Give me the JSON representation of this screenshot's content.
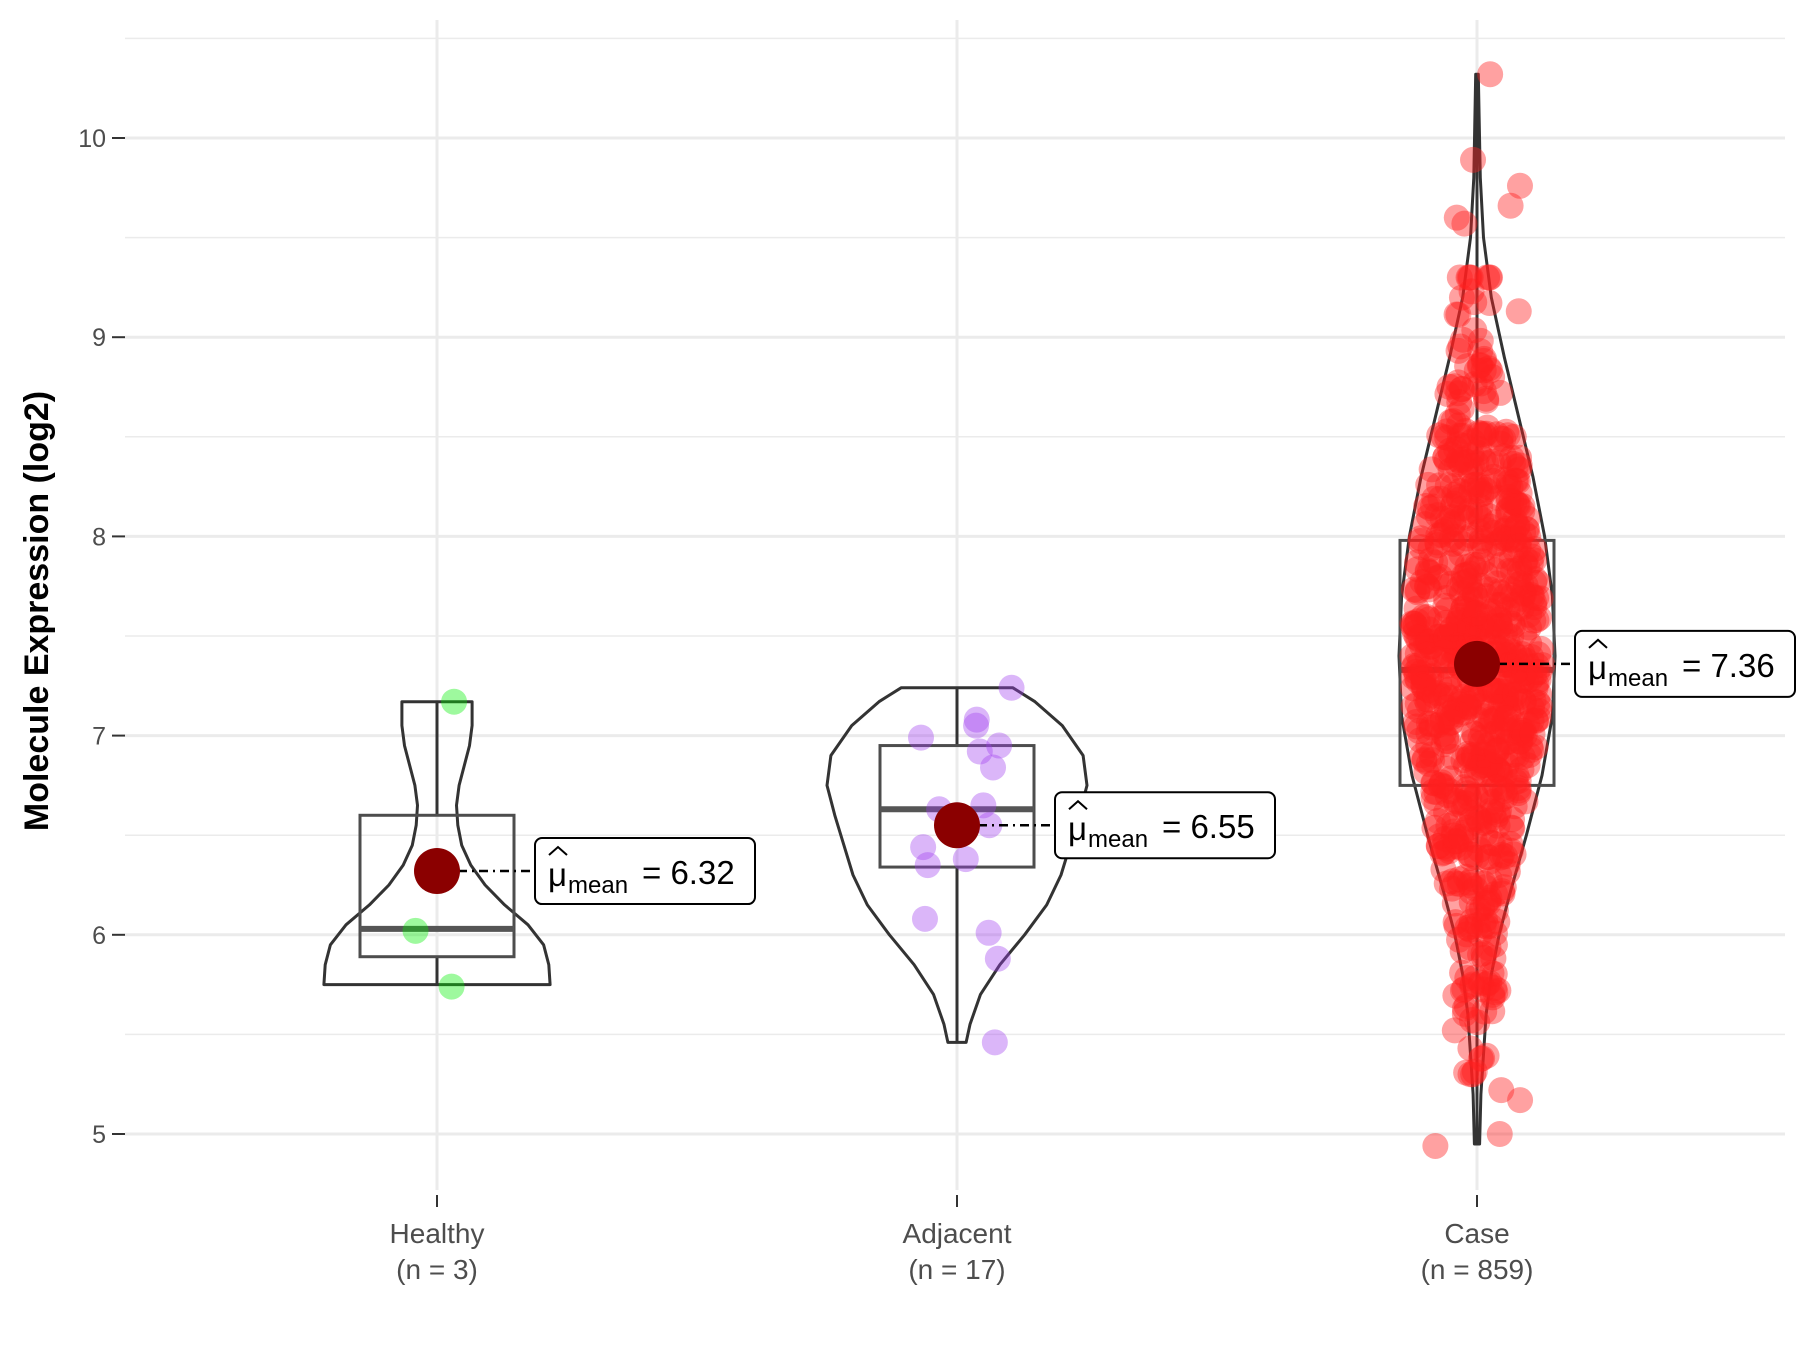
{
  "chart_data": {
    "type": "violin",
    "ylabel": "Molecule Expression (log2)",
    "xlabel": "",
    "ylim": [
      4.7,
      10.6
    ],
    "yticks": [
      5,
      6,
      7,
      8,
      9,
      10
    ],
    "grid": true,
    "groups": [
      {
        "name": "Healthy",
        "n_label": "(n = 3)",
        "color": "#00ee00",
        "box": {
          "q1": 5.89,
          "median": 6.03,
          "q3": 6.6,
          "whisker_low": 5.75,
          "whisker_high": 7.17
        },
        "violin": {
          "ymin": 5.75,
          "ymax": 7.17,
          "widths": [
            [
              5.75,
              0.87
            ],
            [
              5.85,
              0.86
            ],
            [
              5.95,
              0.82
            ],
            [
              6.05,
              0.7
            ],
            [
              6.15,
              0.52
            ],
            [
              6.25,
              0.37
            ],
            [
              6.35,
              0.26
            ],
            [
              6.45,
              0.19
            ],
            [
              6.55,
              0.16
            ],
            [
              6.65,
              0.15
            ],
            [
              6.75,
              0.17
            ],
            [
              6.85,
              0.21
            ],
            [
              6.95,
              0.25
            ],
            [
              7.05,
              0.27
            ],
            [
              7.17,
              0.27
            ]
          ]
        },
        "points": [
          7.17,
          6.02,
          5.74
        ],
        "mean": 6.32,
        "mean_label_prefix": "μ",
        "mean_label_sub": "mean",
        "mean_label_value": "= 6.32"
      },
      {
        "name": "Adjacent",
        "n_label": "(n = 17)",
        "color": "#a040f0",
        "box": {
          "q1": 6.34,
          "median": 6.63,
          "q3": 6.95,
          "whisker_low": 5.46,
          "whisker_high": 7.24
        },
        "violin": {
          "ymin": 5.46,
          "ymax": 7.24,
          "widths": [
            [
              5.46,
              0.07
            ],
            [
              5.55,
              0.1
            ],
            [
              5.7,
              0.18
            ],
            [
              5.85,
              0.33
            ],
            [
              6.0,
              0.52
            ],
            [
              6.15,
              0.69
            ],
            [
              6.3,
              0.8
            ],
            [
              6.45,
              0.87
            ],
            [
              6.6,
              0.94
            ],
            [
              6.75,
              1.0
            ],
            [
              6.9,
              0.97
            ],
            [
              7.05,
              0.81
            ],
            [
              7.17,
              0.6
            ],
            [
              7.24,
              0.43
            ]
          ]
        },
        "points": [
          7.24,
          7.08,
          7.05,
          6.99,
          6.95,
          6.92,
          6.84,
          6.65,
          6.63,
          6.55,
          6.44,
          6.38,
          6.35,
          6.08,
          6.01,
          5.88,
          5.46
        ],
        "mean": 6.55,
        "mean_label_prefix": "μ",
        "mean_label_sub": "mean",
        "mean_label_value": "= 6.55"
      },
      {
        "name": "Case",
        "n_label": "(n = 859)",
        "color": "#ff2020",
        "box": {
          "q1": 6.75,
          "median": 7.33,
          "q3": 7.98,
          "whisker_low": 4.95,
          "whisker_high": 10.32
        },
        "violin": {
          "ymin": 4.95,
          "ymax": 10.32,
          "widths": [
            [
              4.95,
              0.02
            ],
            [
              5.2,
              0.03
            ],
            [
              5.4,
              0.05
            ],
            [
              5.6,
              0.07
            ],
            [
              5.8,
              0.11
            ],
            [
              6.0,
              0.17
            ],
            [
              6.2,
              0.25
            ],
            [
              6.5,
              0.38
            ],
            [
              6.8,
              0.5
            ],
            [
              7.1,
              0.58
            ],
            [
              7.4,
              0.6
            ],
            [
              7.7,
              0.58
            ],
            [
              8.0,
              0.52
            ],
            [
              8.3,
              0.43
            ],
            [
              8.6,
              0.32
            ],
            [
              8.9,
              0.21
            ],
            [
              9.2,
              0.11
            ],
            [
              9.5,
              0.05
            ],
            [
              9.8,
              0.025
            ],
            [
              10.32,
              0.01
            ]
          ]
        },
        "points_count": 859,
        "outliers": [
          10.32,
          9.89,
          9.76,
          9.66,
          9.6,
          9.57,
          9.23,
          9.13,
          8.86,
          5.52,
          5.43,
          5.38,
          5.22,
          5.17,
          5.0,
          4.94
        ],
        "mean": 7.36,
        "mean_label_prefix": "μ",
        "mean_label_sub": "mean",
        "mean_label_value": "= 7.36"
      }
    ]
  }
}
